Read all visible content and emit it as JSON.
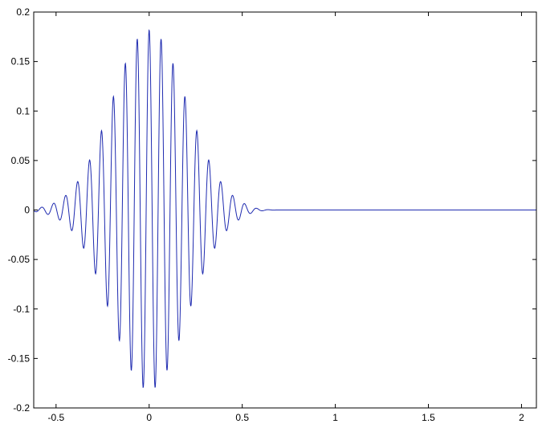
{
  "chart_data": {
    "type": "line",
    "title": "",
    "xlabel": "",
    "ylabel": "",
    "xlim": [
      -0.62,
      2.08
    ],
    "ylim": [
      -0.2,
      0.2
    ],
    "x_ticks": [
      -0.5,
      0,
      0.5,
      1,
      1.5,
      2
    ],
    "x_tick_labels": [
      "-0.5",
      "0",
      "0.5",
      "1",
      "1.5",
      "2"
    ],
    "y_ticks": [
      0.2,
      0.15,
      0.1,
      0.05,
      0,
      -0.05,
      -0.1,
      -0.15,
      -0.2
    ],
    "y_tick_labels": [
      "0.2",
      "0.15",
      "0.1",
      "0.05",
      "0",
      "-0.05",
      "-0.1",
      "-0.15",
      "-0.2"
    ],
    "grid": false,
    "legend": "none",
    "line_color": "#1f2bb0",
    "series": [
      {
        "description_of_shape": "modulated oscillation: Gaussian envelope times cosine carrier",
        "envelope_peak": 0.182,
        "envelope_center": 0.0,
        "envelope_sigma": 0.2,
        "carrier_frequency": 15.6,
        "signal_zero_after_x": 0.7,
        "points": [
          [
            -0.6,
            0.0
          ],
          [
            -0.5,
            -0.012
          ],
          [
            -0.45,
            0.016
          ],
          [
            -0.4,
            -0.025
          ],
          [
            -0.35,
            0.037
          ],
          [
            -0.3,
            -0.063
          ],
          [
            -0.25,
            0.098
          ],
          [
            -0.2,
            -0.119
          ],
          [
            -0.15,
            0.145
          ],
          [
            -0.1,
            -0.16
          ],
          [
            -0.05,
            0.175
          ],
          [
            0.0,
            0.182
          ],
          [
            0.03,
            -0.178
          ],
          [
            0.07,
            0.17
          ],
          [
            0.1,
            -0.159
          ],
          [
            0.15,
            0.145
          ],
          [
            0.2,
            -0.118
          ],
          [
            0.25,
            0.088
          ],
          [
            0.3,
            -0.062
          ],
          [
            0.35,
            0.04
          ],
          [
            0.4,
            -0.022
          ],
          [
            0.45,
            0.012
          ],
          [
            0.5,
            -0.006
          ],
          [
            0.6,
            0.001
          ],
          [
            0.7,
            0.0
          ],
          [
            1.0,
            0.0
          ],
          [
            1.5,
            0.0
          ],
          [
            2.0,
            0.0
          ],
          [
            2.08,
            0.0
          ]
        ]
      }
    ]
  }
}
